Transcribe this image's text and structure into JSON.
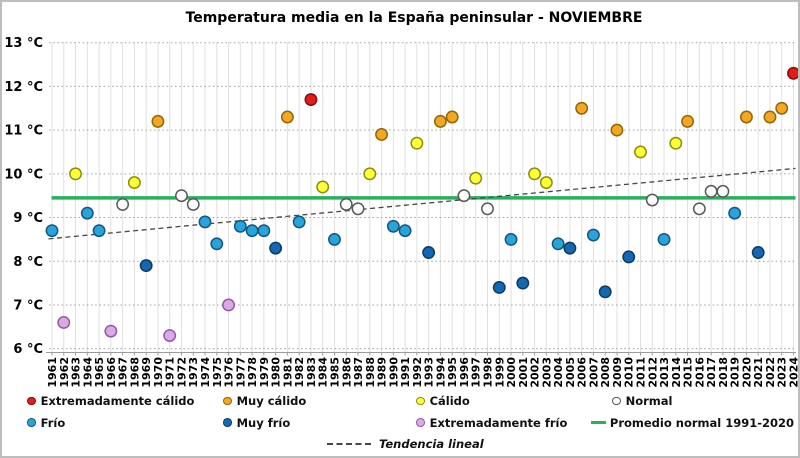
{
  "title": "Temperatura media en la España peninsular - NOVIEMBRE",
  "y_axis": {
    "ticks": [
      {
        "value": 13,
        "label": "13 °C"
      },
      {
        "value": 12,
        "label": "12 °C"
      },
      {
        "value": 11,
        "label": "11 °C"
      },
      {
        "value": 10,
        "label": "10 °C"
      },
      {
        "value": 9,
        "label": "9 °C"
      },
      {
        "value": 8,
        "label": "8 °C"
      },
      {
        "value": 7,
        "label": "7 °C"
      },
      {
        "value": 6,
        "label": "6 °C"
      }
    ]
  },
  "x_axis": {
    "first_year": 1961,
    "last_year": 2024,
    "step": 1
  },
  "chart_data": {
    "type": "scatter",
    "title": "Temperatura media en la España peninsular - NOVIEMBRE",
    "xlabel": "",
    "ylabel": "°C",
    "ylim": [
      6,
      13
    ],
    "grid": true,
    "promedio_normal_1991_2020": 9.45,
    "trend": {
      "year0": 1961,
      "temp0": 8.52,
      "year1": 2024,
      "temp1": 10.12
    },
    "points": [
      {
        "year": 1961,
        "temp": 8.7,
        "cat": "frio"
      },
      {
        "year": 1962,
        "temp": 6.6,
        "cat": "extremadamente_frio"
      },
      {
        "year": 1963,
        "temp": 10.0,
        "cat": "calido"
      },
      {
        "year": 1964,
        "temp": 9.1,
        "cat": "frio"
      },
      {
        "year": 1965,
        "temp": 8.7,
        "cat": "frio"
      },
      {
        "year": 1966,
        "temp": 6.4,
        "cat": "extremadamente_frio"
      },
      {
        "year": 1967,
        "temp": 9.3,
        "cat": "normal"
      },
      {
        "year": 1968,
        "temp": 9.8,
        "cat": "calido"
      },
      {
        "year": 1969,
        "temp": 7.9,
        "cat": "muy_frio"
      },
      {
        "year": 1970,
        "temp": 11.2,
        "cat": "muy_calido"
      },
      {
        "year": 1971,
        "temp": 6.3,
        "cat": "extremadamente_frio"
      },
      {
        "year": 1972,
        "temp": 9.5,
        "cat": "normal"
      },
      {
        "year": 1973,
        "temp": 9.3,
        "cat": "normal"
      },
      {
        "year": 1974,
        "temp": 8.9,
        "cat": "frio"
      },
      {
        "year": 1975,
        "temp": 8.4,
        "cat": "frio"
      },
      {
        "year": 1976,
        "temp": 7.0,
        "cat": "extremadamente_frio"
      },
      {
        "year": 1977,
        "temp": 8.8,
        "cat": "frio"
      },
      {
        "year": 1978,
        "temp": 8.7,
        "cat": "frio"
      },
      {
        "year": 1979,
        "temp": 8.7,
        "cat": "frio"
      },
      {
        "year": 1980,
        "temp": 8.3,
        "cat": "muy_frio"
      },
      {
        "year": 1981,
        "temp": 11.3,
        "cat": "muy_calido"
      },
      {
        "year": 1982,
        "temp": 8.9,
        "cat": "frio"
      },
      {
        "year": 1983,
        "temp": 11.7,
        "cat": "extremadamente_calido"
      },
      {
        "year": 1984,
        "temp": 9.7,
        "cat": "calido"
      },
      {
        "year": 1985,
        "temp": 8.5,
        "cat": "frio"
      },
      {
        "year": 1986,
        "temp": 9.3,
        "cat": "normal"
      },
      {
        "year": 1987,
        "temp": 9.2,
        "cat": "normal"
      },
      {
        "year": 1988,
        "temp": 10.0,
        "cat": "calido"
      },
      {
        "year": 1989,
        "temp": 10.9,
        "cat": "muy_calido"
      },
      {
        "year": 1990,
        "temp": 8.8,
        "cat": "frio"
      },
      {
        "year": 1991,
        "temp": 8.7,
        "cat": "frio"
      },
      {
        "year": 1992,
        "temp": 10.7,
        "cat": "calido"
      },
      {
        "year": 1993,
        "temp": 8.2,
        "cat": "muy_frio"
      },
      {
        "year": 1994,
        "temp": 11.2,
        "cat": "muy_calido"
      },
      {
        "year": 1995,
        "temp": 11.3,
        "cat": "muy_calido"
      },
      {
        "year": 1996,
        "temp": 9.5,
        "cat": "normal"
      },
      {
        "year": 1997,
        "temp": 9.9,
        "cat": "calido"
      },
      {
        "year": 1998,
        "temp": 9.2,
        "cat": "normal"
      },
      {
        "year": 1999,
        "temp": 7.4,
        "cat": "muy_frio"
      },
      {
        "year": 2000,
        "temp": 8.5,
        "cat": "frio"
      },
      {
        "year": 2001,
        "temp": 7.5,
        "cat": "muy_frio"
      },
      {
        "year": 2002,
        "temp": 10.0,
        "cat": "calido"
      },
      {
        "year": 2003,
        "temp": 9.8,
        "cat": "calido"
      },
      {
        "year": 2004,
        "temp": 8.4,
        "cat": "frio"
      },
      {
        "year": 2005,
        "temp": 8.3,
        "cat": "muy_frio"
      },
      {
        "year": 2006,
        "temp": 11.5,
        "cat": "muy_calido"
      },
      {
        "year": 2007,
        "temp": 8.6,
        "cat": "frio"
      },
      {
        "year": 2008,
        "temp": 7.3,
        "cat": "muy_frio"
      },
      {
        "year": 2009,
        "temp": 11.0,
        "cat": "muy_calido"
      },
      {
        "year": 2010,
        "temp": 8.1,
        "cat": "muy_frio"
      },
      {
        "year": 2011,
        "temp": 10.5,
        "cat": "calido"
      },
      {
        "year": 2012,
        "temp": 9.4,
        "cat": "normal"
      },
      {
        "year": 2013,
        "temp": 8.5,
        "cat": "frio"
      },
      {
        "year": 2014,
        "temp": 10.7,
        "cat": "calido"
      },
      {
        "year": 2015,
        "temp": 11.2,
        "cat": "muy_calido"
      },
      {
        "year": 2016,
        "temp": 9.2,
        "cat": "normal"
      },
      {
        "year": 2017,
        "temp": 9.6,
        "cat": "normal"
      },
      {
        "year": 2018,
        "temp": 9.6,
        "cat": "normal"
      },
      {
        "year": 2019,
        "temp": 9.1,
        "cat": "frio"
      },
      {
        "year": 2020,
        "temp": 11.3,
        "cat": "muy_calido"
      },
      {
        "year": 2021,
        "temp": 8.2,
        "cat": "muy_frio"
      },
      {
        "year": 2022,
        "temp": 11.3,
        "cat": "muy_calido"
      },
      {
        "year": 2023,
        "temp": 11.5,
        "cat": "muy_calido"
      },
      {
        "year": 2024,
        "temp": 12.3,
        "cat": "extremadamente_calido"
      }
    ]
  },
  "legend": {
    "categories": [
      {
        "key": "extremadamente_calido",
        "label": "Extremadamente cálido",
        "fill": "#e41b17",
        "stroke": "#7f100d"
      },
      {
        "key": "muy_calido",
        "label": "Muy cálido",
        "fill": "#f6a621",
        "stroke": "#8d6708"
      },
      {
        "key": "calido",
        "label": "Cálido",
        "fill": "#ffff38",
        "stroke": "#8c8c10"
      },
      {
        "key": "normal",
        "label": "Normal",
        "fill": "#fbfbfb",
        "stroke": "#595959"
      },
      {
        "key": "frio",
        "label": "Frío",
        "fill": "#27a4dc",
        "stroke": "#16567c"
      },
      {
        "key": "muy_frio",
        "label": "Muy frío",
        "fill": "#1467b2",
        "stroke": "#0c3d62"
      },
      {
        "key": "extremadamente_frio",
        "label": "Extremadamente frío",
        "fill": "#dca9e6",
        "stroke": "#8e5ba8"
      }
    ],
    "promedio": {
      "label": "Promedio normal 1991-2020",
      "color": "#28b05c"
    },
    "tendencia": {
      "label": "Tendencia lineal",
      "color": "#474747"
    }
  },
  "colors": {
    "grid_vertical": "#e0e0e0",
    "grid_horizontal": "#a6a6a6",
    "axis": "#9c9c9c",
    "text": "#000000"
  }
}
